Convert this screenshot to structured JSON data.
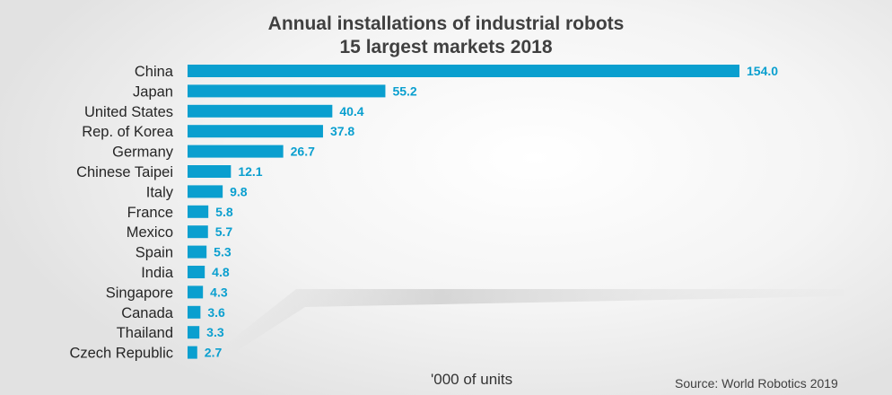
{
  "colors": {
    "bar": "#0a9fcf",
    "value_label": "#0a9fcf",
    "title": "#404040",
    "category_label": "#262626"
  },
  "chart_data": {
    "type": "bar",
    "orientation": "horizontal",
    "title": "Annual installations of industrial robots",
    "subtitle": "15 largest markets 2018",
    "categories": [
      "China",
      "Japan",
      "United States",
      "Rep. of Korea",
      "Germany",
      "Chinese Taipei",
      "Italy",
      "France",
      "Mexico",
      "Spain",
      "India",
      "Singapore",
      "Canada",
      "Thailand",
      "Czech Republic"
    ],
    "values": [
      154.0,
      55.2,
      40.4,
      37.8,
      26.7,
      12.1,
      9.8,
      5.8,
      5.7,
      5.3,
      4.8,
      4.3,
      3.6,
      3.3,
      2.7
    ],
    "value_labels": [
      "154.0",
      "55.2",
      "40.4",
      "37.8",
      "26.7",
      "12.1",
      "9.8",
      "5.8",
      "5.7",
      "5.3",
      "4.8",
      "4.3",
      "3.6",
      "3.3",
      "2.7"
    ],
    "xlabel": "'000 of units",
    "source": "Source: World Robotics 2019",
    "xlim": [
      0,
      154.0
    ],
    "grid": false,
    "legend": "none"
  }
}
